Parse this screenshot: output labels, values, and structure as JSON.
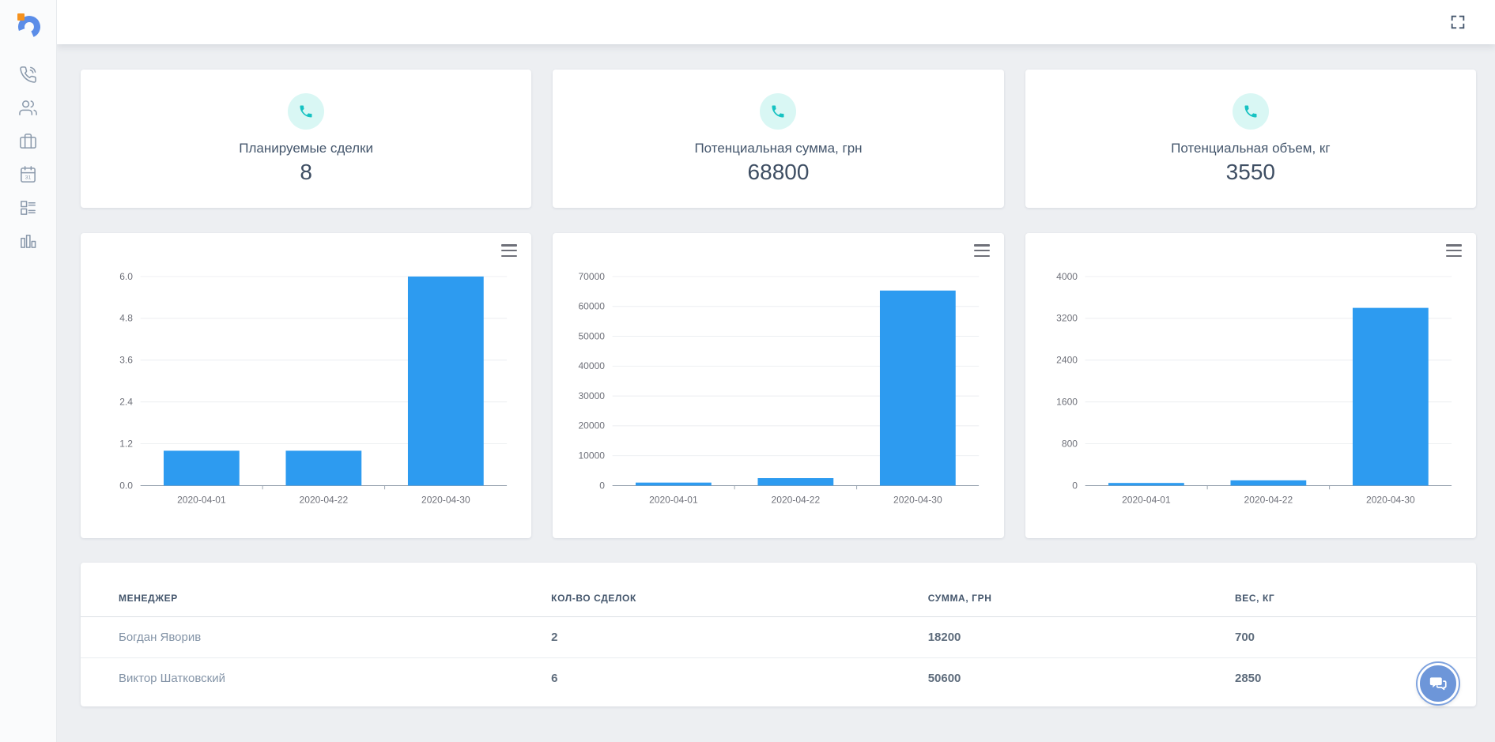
{
  "topbar": {
    "fullscreen_icon": "fullscreen"
  },
  "sidebar": {
    "items": [
      {
        "id": "calls",
        "icon": "phone-call-icon"
      },
      {
        "id": "contacts",
        "icon": "users-icon"
      },
      {
        "id": "deals",
        "icon": "briefcase-icon"
      },
      {
        "id": "calendar",
        "icon": "calendar-icon",
        "calendar_day": "31"
      },
      {
        "id": "board",
        "icon": "layout-list-icon"
      },
      {
        "id": "stats",
        "icon": "bar-chart-icon"
      }
    ]
  },
  "stats": [
    {
      "title": "Планируемые сделки",
      "value": "8",
      "icon": "phone-icon"
    },
    {
      "title": "Потенциальная сумма, грн",
      "value": "68800",
      "icon": "phone-icon"
    },
    {
      "title": "Потенциальная объем, кг",
      "value": "3550",
      "icon": "phone-icon"
    }
  ],
  "chart_data": [
    {
      "type": "bar",
      "categories": [
        "2020-04-01",
        "2020-04-22",
        "2020-04-30"
      ],
      "values": [
        1,
        1,
        6
      ],
      "ylim": [
        0,
        6
      ],
      "yticks": [
        0,
        1.2,
        2.4,
        3.6,
        4.8,
        6
      ],
      "ytick_labels": [
        "0.0",
        "1.2",
        "2.4",
        "3.6",
        "4.8",
        "6.0"
      ],
      "xlabel": "",
      "ylabel": "",
      "grid": true,
      "legend": "none"
    },
    {
      "type": "bar",
      "categories": [
        "2020-04-01",
        "2020-04-22",
        "2020-04-30"
      ],
      "values": [
        1000,
        2500,
        65300
      ],
      "ylim": [
        0,
        70000
      ],
      "yticks": [
        0,
        10000,
        20000,
        30000,
        40000,
        50000,
        60000,
        70000
      ],
      "ytick_labels": [
        "0",
        "10000",
        "20000",
        "30000",
        "40000",
        "50000",
        "60000",
        "70000"
      ],
      "xlabel": "",
      "ylabel": "",
      "grid": true,
      "legend": "none"
    },
    {
      "type": "bar",
      "categories": [
        "2020-04-01",
        "2020-04-22",
        "2020-04-30"
      ],
      "values": [
        50,
        100,
        3400
      ],
      "ylim": [
        0,
        4000
      ],
      "yticks": [
        0,
        800,
        1600,
        2400,
        3200,
        4000
      ],
      "ytick_labels": [
        "0",
        "800",
        "1600",
        "2400",
        "3200",
        "4000"
      ],
      "xlabel": "",
      "ylabel": "",
      "grid": true,
      "legend": "none"
    }
  ],
  "table": {
    "columns": [
      "МЕНЕДЖЕР",
      "КОЛ-ВО СДЕЛОК",
      "СУММА, ГРН",
      "ВЕС, КГ"
    ],
    "rows": [
      [
        "Богдан Яворив",
        "2",
        "18200",
        "700"
      ],
      [
        "Виктор Шатковский",
        "6",
        "50600",
        "2850"
      ]
    ]
  },
  "colors": {
    "bar": "#2D9BF0",
    "stat_icon": "#17C2C2",
    "stat_icon_bg": "#D9F7F4",
    "chat_fab": "#6D96D9",
    "grid_line": "#ECEEF1",
    "axis_line": "#9AA5B1",
    "text_primary": "#44566C"
  }
}
